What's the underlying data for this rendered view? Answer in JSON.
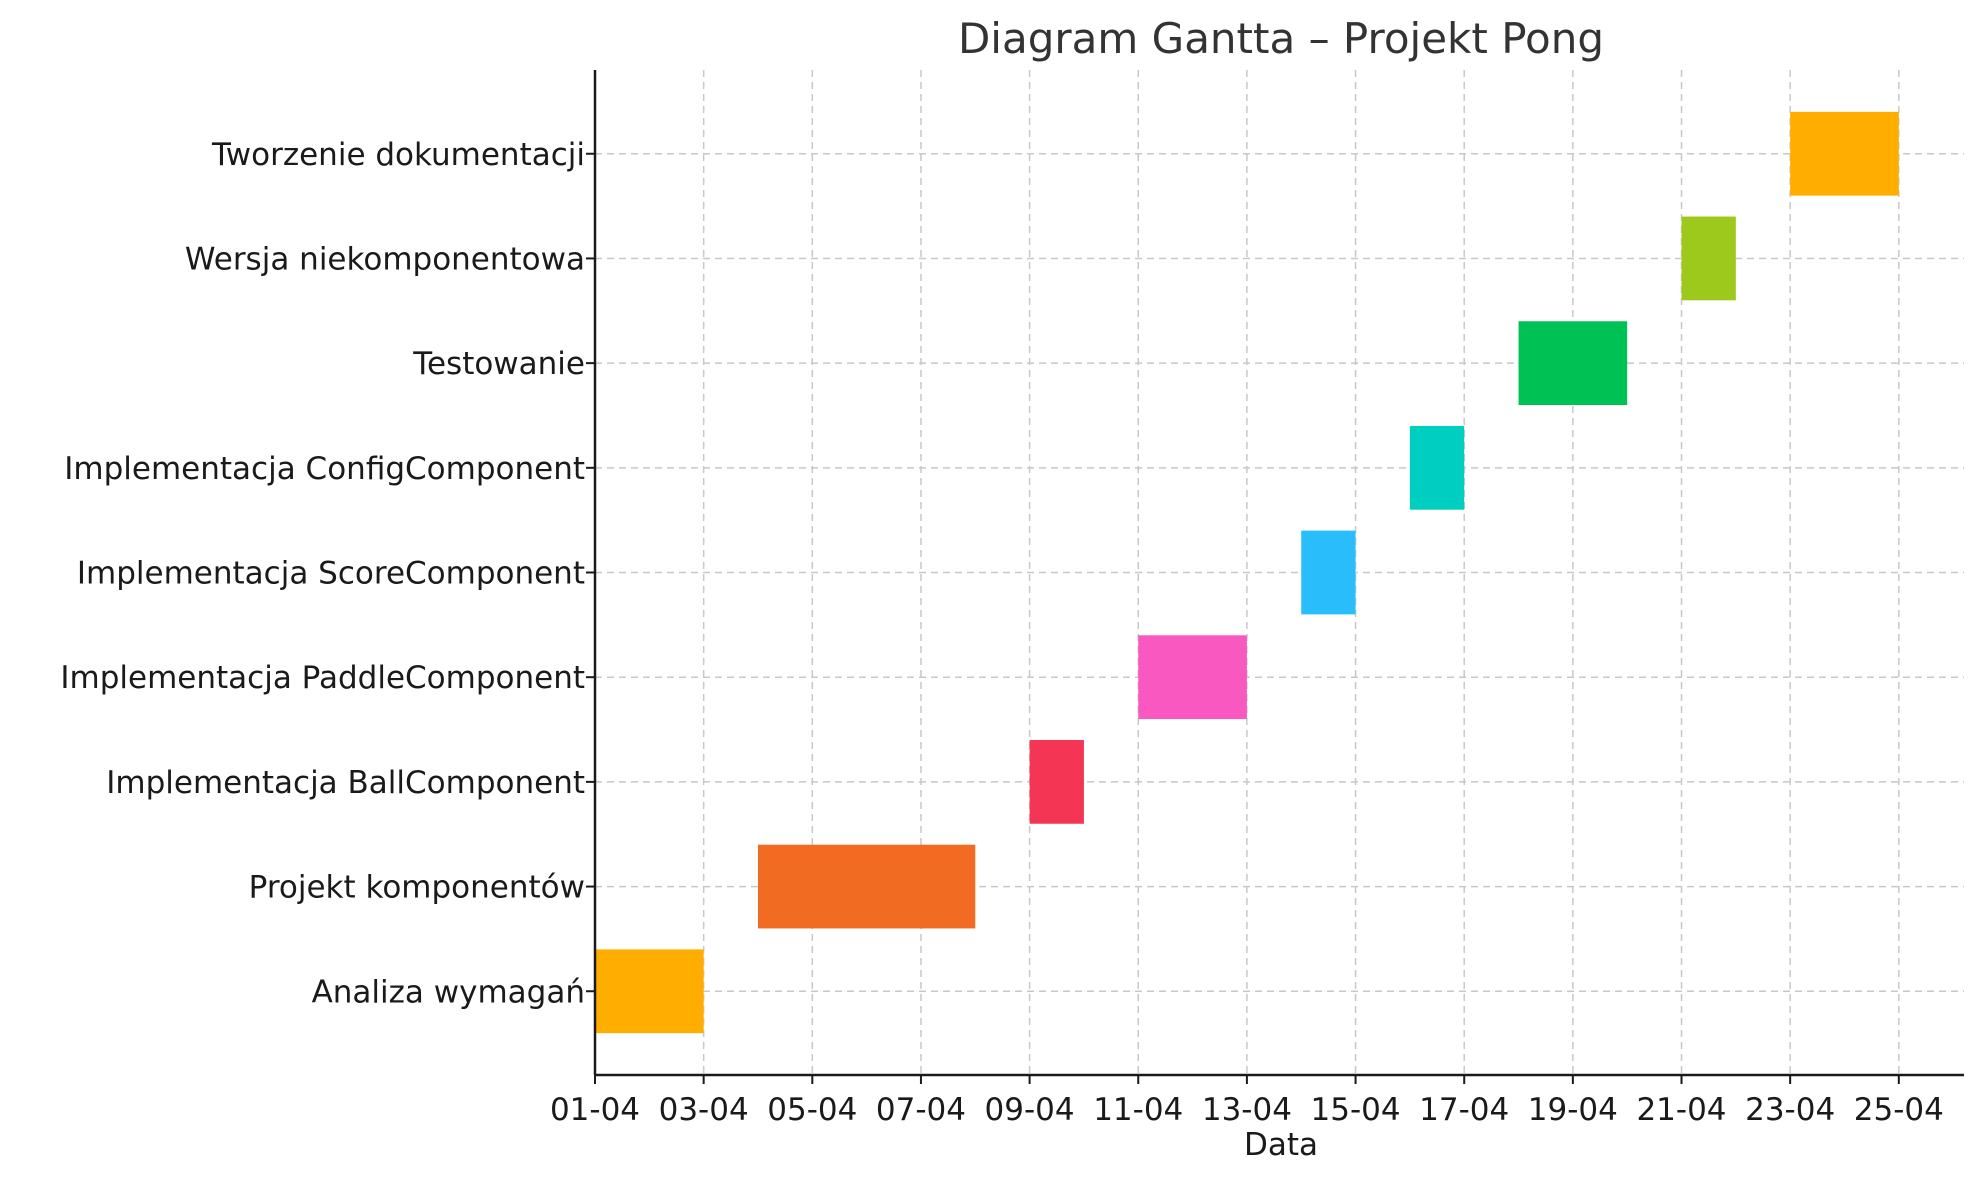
{
  "chart_data": {
    "type": "gantt",
    "title": "Diagram Gantta – Projekt Pong",
    "xlabel": "Data",
    "ylabel": "",
    "x_ticks": [
      "01-04",
      "03-04",
      "05-04",
      "07-04",
      "09-04",
      "11-04",
      "13-04",
      "15-04",
      "17-04",
      "19-04",
      "21-04",
      "23-04",
      "25-04"
    ],
    "x_range": [
      1,
      26.2
    ],
    "grid": true,
    "tasks": [
      {
        "name": "Analiza wymagań",
        "start": 1,
        "end": 3,
        "color": "#FFAE00"
      },
      {
        "name": "Projekt komponentów",
        "start": 4,
        "end": 8,
        "color": "#F26B22"
      },
      {
        "name": "Implementacja BallComponent",
        "start": 9,
        "end": 10,
        "color": "#F53554"
      },
      {
        "name": "Implementacja PaddleComponent",
        "start": 11,
        "end": 13,
        "color": "#F858C0"
      },
      {
        "name": "Implementacja ScoreComponent",
        "start": 14,
        "end": 15,
        "color": "#2ABDFB"
      },
      {
        "name": "Implementacja ConfigComponent",
        "start": 16,
        "end": 17,
        "color": "#00CEC0"
      },
      {
        "name": "Testowanie",
        "start": 18,
        "end": 20,
        "color": "#00C154"
      },
      {
        "name": "Wersja niekomponentowa",
        "start": 21,
        "end": 22,
        "color": "#9DC91C"
      },
      {
        "name": "Tworzenie dokumentacji",
        "start": 23,
        "end": 25,
        "color": "#FFAE00"
      }
    ]
  }
}
